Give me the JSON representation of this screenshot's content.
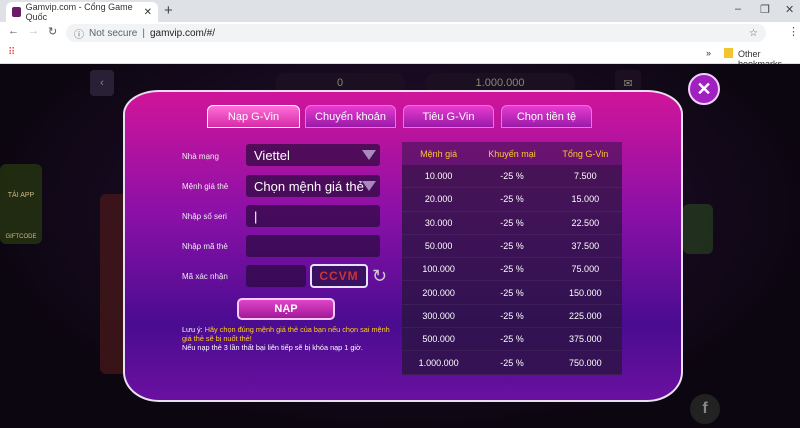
{
  "browser": {
    "tab_title": "Gamvip.com - Cổng Game Quốc",
    "url_security": "Not secure",
    "url": "gamvip.com/#/",
    "bookmarks": "Other bookmarks"
  },
  "game": {
    "balance_gold": "0",
    "balance_silver": "1.000.000",
    "side_labels": [
      "TẢI APP",
      "GIFTCODE"
    ]
  },
  "modal": {
    "tabs": [
      {
        "label": "Nạp G-Vin",
        "active": true
      },
      {
        "label": "Chuyển khoản"
      },
      {
        "label": "Tiêu G-Vin"
      },
      {
        "label": "Chọn tiền tệ"
      }
    ],
    "form": {
      "network_label": "Nhà mạng",
      "network_value": "Viettel",
      "denom_label": "Mệnh giá thẻ",
      "denom_value": "Chọn mệnh giá thẻ",
      "serial_label": "Nhập số seri",
      "serial_value": "|",
      "pin_label": "Nhập mã thẻ",
      "pin_value": "",
      "captcha_label": "Mã xác nhận",
      "captcha_value": "",
      "captcha_image": "CCVM",
      "submit": "NẠP"
    },
    "note": {
      "prefix": "Lưu ý: ",
      "warning": "Hãy chọn đúng mệnh giá thẻ của bạn nếu chọn sai mệnh giá thẻ sẽ bị nuốt thẻ!",
      "line2": "Nếu nạp thẻ 3 lần thất bại liên tiếp sẽ bị khóa nạp 1 giờ."
    },
    "table": {
      "headers": [
        "Mệnh giá",
        "Khuyến mại",
        "Tổng G-Vin"
      ],
      "rows": [
        [
          "10.000",
          "-25 %",
          "7.500"
        ],
        [
          "20.000",
          "-25 %",
          "15.000"
        ],
        [
          "30.000",
          "-25 %",
          "22.500"
        ],
        [
          "50.000",
          "-25 %",
          "37.500"
        ],
        [
          "100.000",
          "-25 %",
          "75.000"
        ],
        [
          "200.000",
          "-25 %",
          "150.000"
        ],
        [
          "300.000",
          "-25 %",
          "225.000"
        ],
        [
          "500.000",
          "-25 %",
          "375.000"
        ],
        [
          "1.000.000",
          "-25 %",
          "750.000"
        ]
      ]
    }
  }
}
